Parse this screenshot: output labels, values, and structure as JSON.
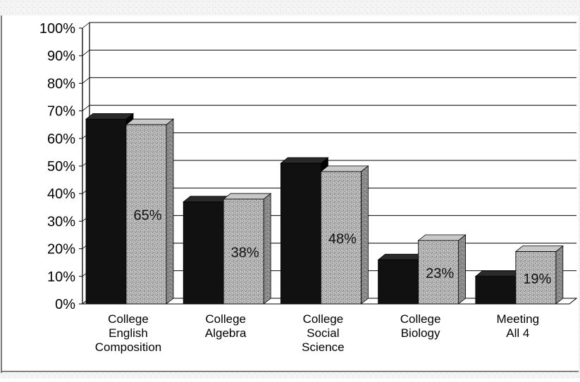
{
  "chart_data": {
    "type": "bar",
    "categories": [
      [
        "College",
        "English",
        "Composition"
      ],
      [
        "College",
        "Algebra"
      ],
      [
        "College",
        "Social",
        "Science"
      ],
      [
        "College",
        "Biology"
      ],
      [
        "Meeting",
        "All 4"
      ]
    ],
    "series": [
      {
        "values": [
          67,
          37,
          51,
          16,
          10
        ],
        "color": "#111111"
      },
      {
        "values": [
          65,
          38,
          48,
          23,
          19
        ],
        "color": "#a8a8a8",
        "labels": [
          "65%",
          "38%",
          "48%",
          "23%",
          "19%"
        ]
      }
    ],
    "ylim": [
      0,
      100
    ],
    "yticks": [
      "0%",
      "10%",
      "20%",
      "30%",
      "40%",
      "50%",
      "60%",
      "70%",
      "80%",
      "90%",
      "100%"
    ],
    "grid": true,
    "style": "3d-clustered-column"
  }
}
